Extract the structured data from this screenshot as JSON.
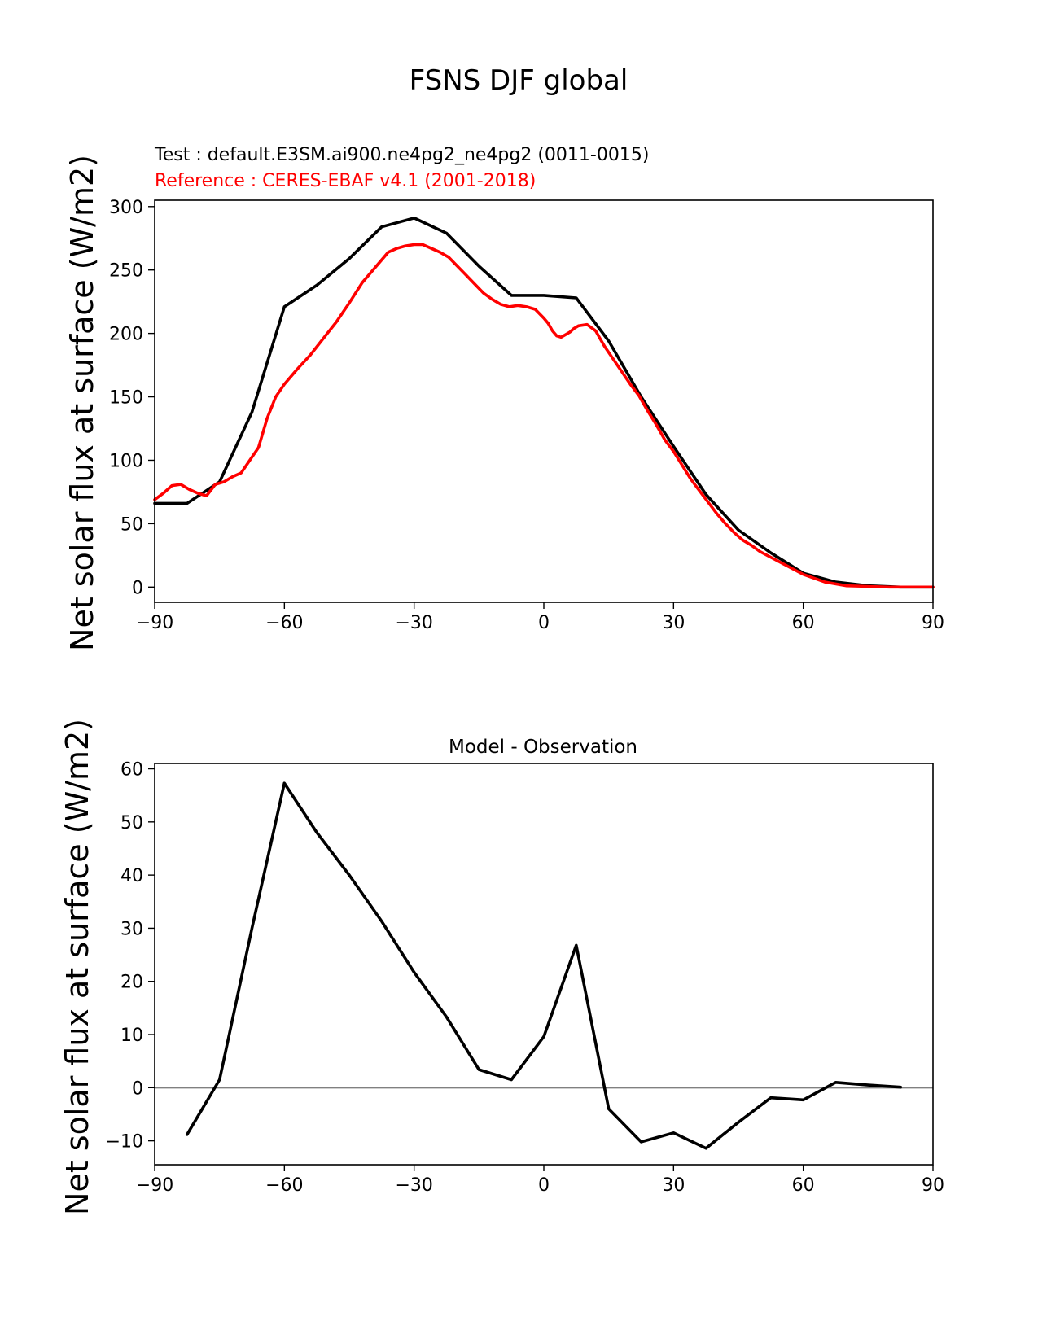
{
  "figure": {
    "suptitle": "FSNS DJF global"
  },
  "chart_data": [
    {
      "type": "line",
      "title": "",
      "test_label": "Test : default.E3SM.ai900.ne4pg2_ne4pg2 (0011-0015)",
      "reference_label": "Reference : CERES-EBAF v4.1 (2001-2018)",
      "xlabel": "",
      "ylabel": "Net solar flux at surface (W/m2)",
      "xlim": [
        -90,
        90
      ],
      "ylim": [
        -12,
        305
      ],
      "xticks": [
        -90,
        -60,
        -30,
        0,
        30,
        60,
        90
      ],
      "xtick_labels": [
        "−90",
        "−60",
        "−30",
        "0",
        "30",
        "60",
        "90"
      ],
      "yticks": [
        0,
        50,
        100,
        150,
        200,
        250,
        300
      ],
      "ytick_labels": [
        "0",
        "50",
        "100",
        "150",
        "200",
        "250",
        "300"
      ],
      "colors": {
        "test": "#000000",
        "reference": "#ff0000"
      },
      "series": [
        {
          "key": "test",
          "x": [
            -90,
            -82.5,
            -75,
            -67.5,
            -60,
            -52.5,
            -45,
            -37.5,
            -30,
            -22.5,
            -15,
            -7.5,
            0,
            7.5,
            15,
            22.5,
            30,
            37.5,
            45,
            52.5,
            60,
            67.5,
            75,
            82.5,
            90
          ],
          "y": [
            66,
            66,
            83,
            138,
            221,
            238,
            259,
            284,
            291,
            279,
            253,
            230,
            230,
            228,
            194,
            150,
            111,
            73,
            45,
            27,
            11,
            4,
            1,
            0,
            0
          ]
        },
        {
          "key": "reference",
          "x": [
            -90,
            -88,
            -86,
            -84,
            -82,
            -80,
            -78,
            -76,
            -74,
            -72,
            -70,
            -68,
            -66,
            -64,
            -62,
            -60,
            -57,
            -54,
            -51,
            -48,
            -45,
            -42,
            -39,
            -36,
            -34,
            -32,
            -30,
            -28,
            -26,
            -24,
            -22,
            -20,
            -18,
            -16,
            -14,
            -12,
            -10,
            -8,
            -6,
            -4,
            -2,
            0,
            1,
            2,
            3,
            4,
            5,
            6,
            7,
            8,
            10,
            12,
            13,
            14,
            16,
            18,
            20,
            22,
            24,
            26,
            28,
            30,
            32,
            34,
            36,
            38,
            40,
            42,
            44,
            46,
            48,
            50,
            55,
            60,
            65,
            70,
            75,
            80,
            85,
            90
          ],
          "y": [
            69,
            74,
            80,
            81,
            77,
            74,
            72,
            81,
            83,
            87,
            90,
            100,
            110,
            133,
            150,
            160,
            172,
            183,
            196,
            209,
            224,
            240,
            252,
            264,
            267,
            269,
            270,
            270,
            267,
            264,
            260,
            253,
            246,
            239,
            232,
            227,
            223,
            221,
            222,
            221,
            219,
            212,
            208,
            202,
            198,
            197,
            199,
            201,
            204,
            206,
            207,
            202,
            196,
            190,
            180,
            170,
            160,
            151,
            139,
            128,
            116,
            107,
            96,
            85,
            76,
            67,
            58,
            50,
            43,
            37,
            33,
            28,
            19,
            10,
            4,
            1,
            0.5,
            0,
            0,
            0
          ]
        }
      ]
    },
    {
      "type": "line",
      "title": "Model - Observation",
      "xlabel": "",
      "ylabel": "Net solar flux at surface (W/m2)",
      "xlim": [
        -90,
        90
      ],
      "ylim": [
        -14.5,
        61
      ],
      "xticks": [
        -90,
        -60,
        -30,
        0,
        30,
        60,
        90
      ],
      "xtick_labels": [
        "−90",
        "−60",
        "−30",
        "0",
        "30",
        "60",
        "90"
      ],
      "yticks": [
        -10,
        0,
        10,
        20,
        30,
        40,
        50,
        60
      ],
      "ytick_labels": [
        "−10",
        "0",
        "10",
        "20",
        "30",
        "40",
        "50",
        "60"
      ],
      "zero_line": true,
      "colors": {
        "diff": "#000000",
        "zero": "#808080"
      },
      "series": [
        {
          "key": "diff",
          "x": [
            -82.5,
            -75,
            -67.5,
            -60,
            -52.5,
            -45,
            -37.5,
            -30,
            -22.5,
            -15,
            -7.5,
            0,
            7.5,
            15,
            22.5,
            30,
            37.5,
            45,
            52.5,
            60,
            67.5,
            75,
            82.5
          ],
          "y": [
            -8.8,
            1.5,
            30.0,
            57.3,
            48.0,
            40.0,
            31.3,
            21.7,
            13.3,
            3.4,
            1.5,
            9.6,
            26.8,
            -4.0,
            -10.2,
            -8.5,
            -11.4,
            -6.5,
            -1.9,
            -2.3,
            1.0,
            0.5,
            0.1
          ]
        }
      ]
    }
  ]
}
